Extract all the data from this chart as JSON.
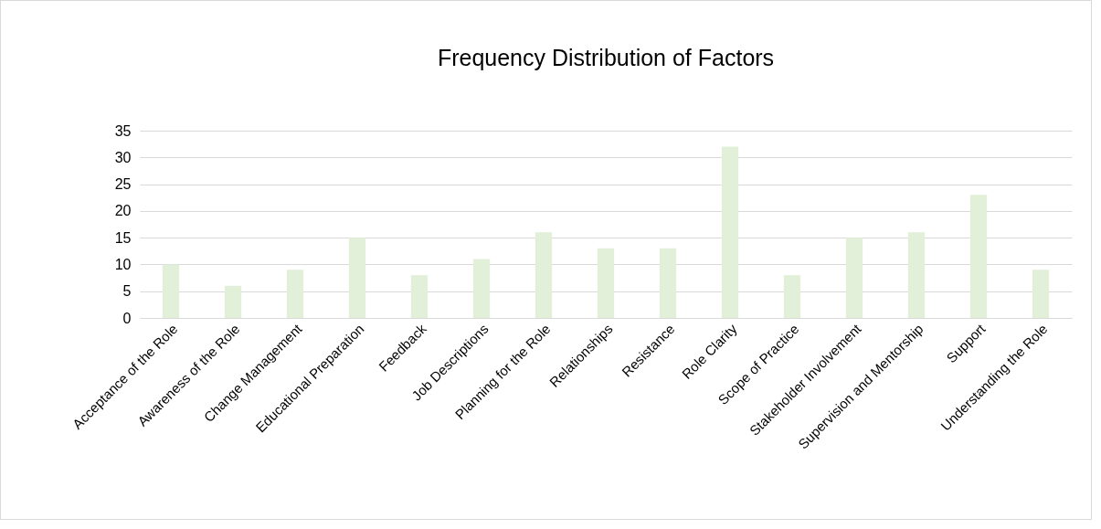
{
  "chart_data": {
    "type": "bar",
    "title": "Frequency Distribution of Factors",
    "categories": [
      "Acceptance of the Role",
      "Awareness of the Role",
      "Change Management",
      "Educational Preparation",
      "Feedback",
      "Job Descriptions",
      "Planning for the Role",
      "Relationships",
      "Resistance",
      "Role Clarity",
      "Scope of Practice",
      "Stakeholder Involvement",
      "Supervision and Mentorship",
      "Support",
      "Understanding the Role"
    ],
    "values": [
      10,
      6,
      9,
      15,
      8,
      11,
      16,
      13,
      13,
      32,
      8,
      15,
      16,
      23,
      9
    ],
    "color": "#e2efd9",
    "ylim": [
      0,
      35
    ],
    "yticks": [
      0,
      5,
      10,
      15,
      20,
      25,
      30,
      35
    ],
    "grid": "y"
  }
}
